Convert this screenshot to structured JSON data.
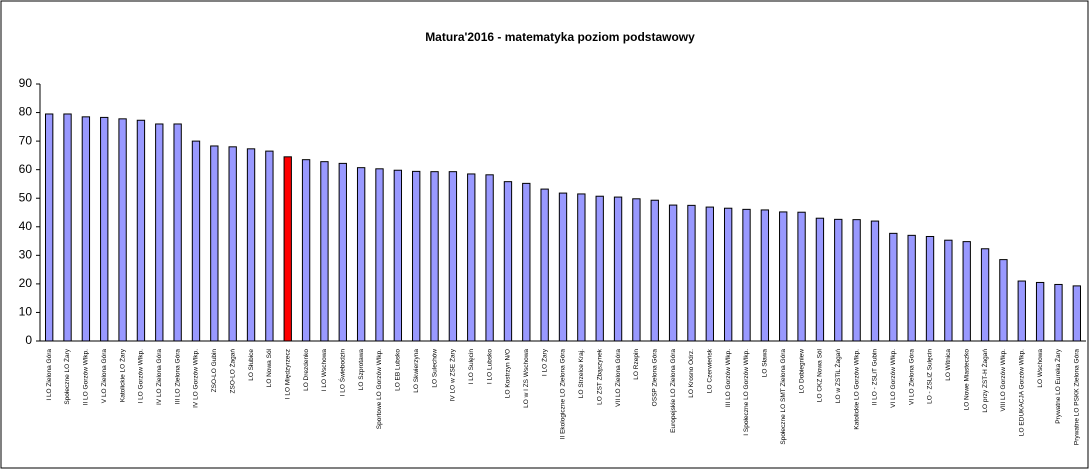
{
  "chart_data": {
    "type": "bar",
    "title": "Matura'2016 - matematyka poziom podstawowy",
    "categories": [
      "I LO Zielona Góra",
      "Społeczne LO Żary",
      "II LO Gorzów Wlkp.",
      "V LO Zielona Góra",
      "Katolickie LO Żary",
      "I LO Gorzów Wlkp.",
      "IV LO Zielona Góra",
      "III LO Zielona Góra",
      "IV LO Gorzów Wlkp.",
      "ZSO-LO Gubin",
      "ZSO-LO Żagań",
      "LO Słubice",
      "LO Nowa Sól",
      "I LO Międzyrzecz",
      "LO Drezdenko",
      "I LO Wschowa",
      "I LO Świebodzin",
      "LO Szprotawa",
      "Sportowe LO Gorzów Wlkp.",
      "LO EB Lubsko",
      "LO Skwierzyna",
      "LO Sulechów",
      "IV LO w ZSE Żary",
      "I LO Sulęcin",
      "I LO Lubsko",
      "LO Kostrzyn N/O",
      "LO w I ZS Wschowa",
      "I LO Żary",
      "II Ekologiczne LO Zielona Góra",
      "LO Strzelce Kraj.",
      "LO ZST Zbąszynek",
      "VII LO Zielona Góra",
      "LO Rzepin",
      "OSSP Zielona Góra",
      "Europejskie LO Zielona Góra",
      "LO Krosno Odrz.",
      "LO Czerwieńsk",
      "III LO Gorzów Wlkp.",
      "I Społeczne LO Gorzów Wlkp.",
      "LO Sława",
      "Społeczne LO SMT Zielona Góra",
      "LO Dobiegniew",
      "LO CKZ Nowa Sól",
      "LO w ZSTiL Żagań",
      "Katolickie LO Gorzów Wlkp.",
      "II LO - ZSLiT Gubin",
      "VI LO Gorzów Wlkp.",
      "VI LO Zielona Góra",
      "LO - ZSLiZ Sulęcin",
      "LO Witnica",
      "LO Nowe Miasteczko",
      "LO przy ZST-H Żagań",
      "VIII LO Gorzów Wlkp.",
      "LO EDUKACJA Gorzów Wlkp.",
      "LO Wschowa",
      "Prywatne LO Eureka Żary",
      "Prywatne LO PSKK Zielona Góra"
    ],
    "values": [
      79.5,
      79.5,
      78.5,
      78.3,
      77.8,
      77.3,
      76,
      76,
      70,
      68.3,
      68,
      67.3,
      66.5,
      64.5,
      63.5,
      62.8,
      62.2,
      60.7,
      60.3,
      59.8,
      59.4,
      59.3,
      59.3,
      58.5,
      58.2,
      55.8,
      55.2,
      53.2,
      51.8,
      51.5,
      50.7,
      50.4,
      49.8,
      49.3,
      47.6,
      47.5,
      46.9,
      46.5,
      46.1,
      45.9,
      45.2,
      45.1,
      43,
      42.6,
      42.5,
      42,
      37.7,
      37,
      36.6,
      35.3,
      34.8,
      32.3,
      28.5,
      21,
      20.5,
      19.8,
      19.3
    ],
    "color": "#9999ff",
    "highlight_color": "#ff0000",
    "highlight": [
      13
    ],
    "ylim": [
      0,
      90
    ],
    "yticks": [
      0,
      10,
      20,
      30,
      40,
      50,
      60,
      70,
      80,
      90
    ],
    "grid": false
  }
}
